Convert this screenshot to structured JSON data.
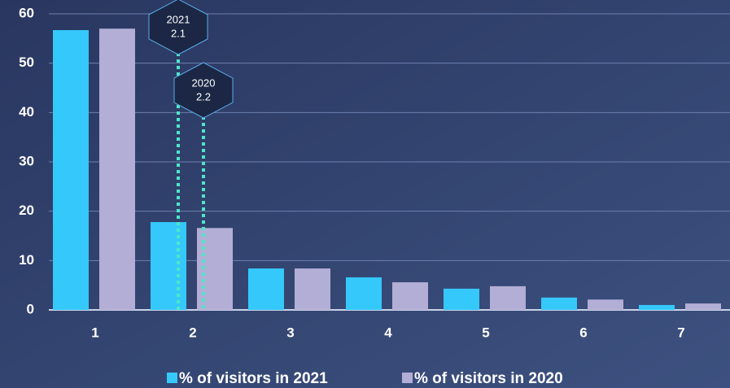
{
  "chart_data": {
    "type": "bar",
    "categories": [
      "1",
      "2",
      "3",
      "4",
      "5",
      "6",
      "7"
    ],
    "series": [
      {
        "name": "% of visitors in 2021",
        "color": "#35c8fb",
        "values": [
          56.7,
          17.8,
          8.4,
          6.6,
          4.3,
          2.5,
          1.0
        ]
      },
      {
        "name": "% of visitors in 2020",
        "color": "#b3aed6",
        "values": [
          57.0,
          16.6,
          8.4,
          5.6,
          4.8,
          2.1,
          1.3
        ]
      }
    ],
    "ylim": [
      0,
      60
    ],
    "yticks": [
      0,
      10,
      20,
      30,
      40,
      50,
      60
    ],
    "grid": true,
    "legend": "bottom",
    "annotations": [
      {
        "title": "2021",
        "value": 2.1
      },
      {
        "title": "2020",
        "value": 2.2
      }
    ]
  }
}
